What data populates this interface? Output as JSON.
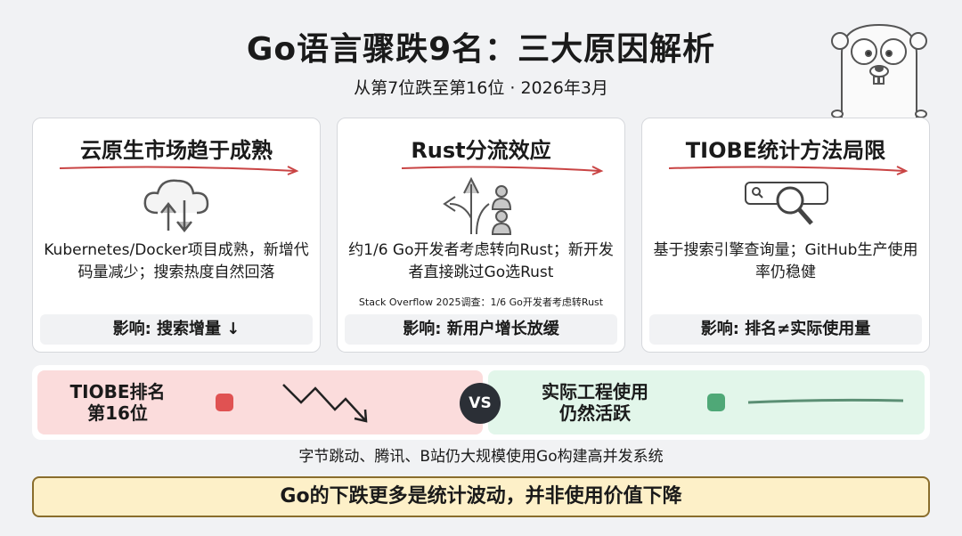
{
  "header": {
    "title": "Go语言骤跌9名：三大原因解析",
    "subtitle": "从第7位跌至第16位 · 2026年3月"
  },
  "cards": [
    {
      "title": "云原生市场趋于成熟",
      "icon": "cloud-sync-icon",
      "body": "Kubernetes/Docker项目成熟，新增代码量减少；搜索热度自然回落",
      "note": "",
      "impact": "影响: 搜索增量 ↓"
    },
    {
      "title": "Rust分流效应",
      "icon": "fork-arrows-users-icon",
      "body": "约1/6 Go开发者考虑转向Rust；新开发者直接跳过Go选Rust",
      "note": "Stack Overflow 2025调查：1/6 Go开发者考虑转Rust",
      "impact": "影响: 新用户增长放缓"
    },
    {
      "title": "TIOBE统计方法局限",
      "icon": "search-magnifier-icon",
      "body": "基于搜索引擎查询量；GitHub生产使用率仍稳健",
      "note": "",
      "impact": "影响: 排名≠实际使用量"
    }
  ],
  "compare": {
    "left": "TIOBE排名\n第16位",
    "right": "实际工程使用\n仍然活跃",
    "vs": "VS",
    "left_color": "#e05252",
    "right_color": "#4fa877"
  },
  "footnote": "字节跳动、腾讯、B站仍大规模使用Go构建高并发系统",
  "conclusion": "Go的下跌更多是统计波动，并非使用价值下降",
  "colors": {
    "accent_red": "#d04848",
    "conclusion_bg": "#fdf0c8"
  }
}
